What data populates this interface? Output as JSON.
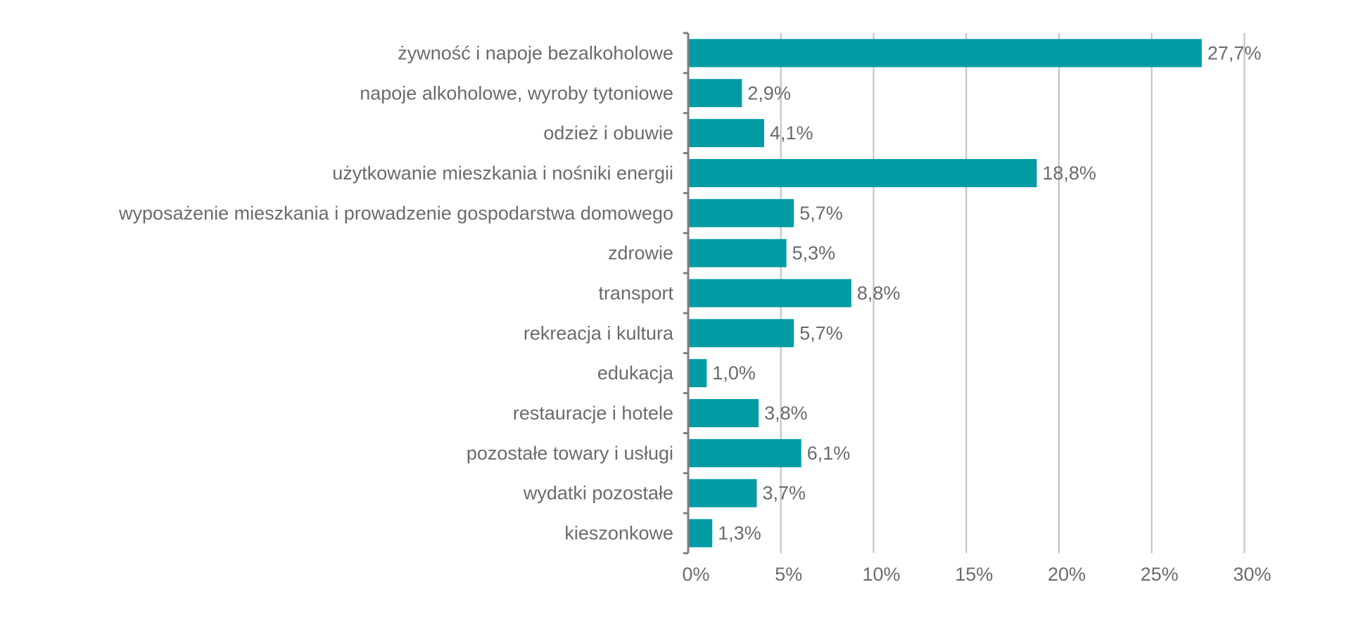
{
  "chart_data": {
    "type": "bar",
    "orientation": "horizontal",
    "categories": [
      "żywność i napoje bezalkoholowe",
      "napoje alkoholowe, wyroby tytoniowe",
      "odzież i obuwie",
      "użytkowanie mieszkania i nośniki energii",
      "wyposażenie mieszkania i prowadzenie gospodarstwa domowego",
      "zdrowie",
      "transport",
      "rekreacja i kultura",
      "edukacja",
      "restauracje i hotele",
      "pozostałe towary i usługi",
      "wydatki pozostałe",
      "kieszonkowe"
    ],
    "values": [
      27.7,
      2.9,
      4.1,
      18.8,
      5.7,
      5.3,
      8.8,
      5.7,
      1.0,
      3.8,
      6.1,
      3.7,
      1.3
    ],
    "data_labels": [
      "27,7%",
      "2,9%",
      "4,1%",
      "18,8%",
      "5,7%",
      "5,3%",
      "8,8%",
      "5,7%",
      "1,0%",
      "3,8%",
      "6,1%",
      "3,7%",
      "1,3%"
    ],
    "x_ticks": [
      0,
      5,
      10,
      15,
      20,
      25,
      30
    ],
    "x_tick_labels": [
      "0%",
      "5%",
      "10%",
      "15%",
      "20%",
      "25%",
      "30%"
    ],
    "xlim": [
      0,
      30
    ],
    "title": "",
    "xlabel": "",
    "ylabel": "",
    "grid": "vertical",
    "legend": "none",
    "colors": {
      "bar": "#009BA5",
      "grid": "#BFBFBF",
      "axis": "#7F7F7F",
      "text": "#6B6B6B"
    }
  }
}
